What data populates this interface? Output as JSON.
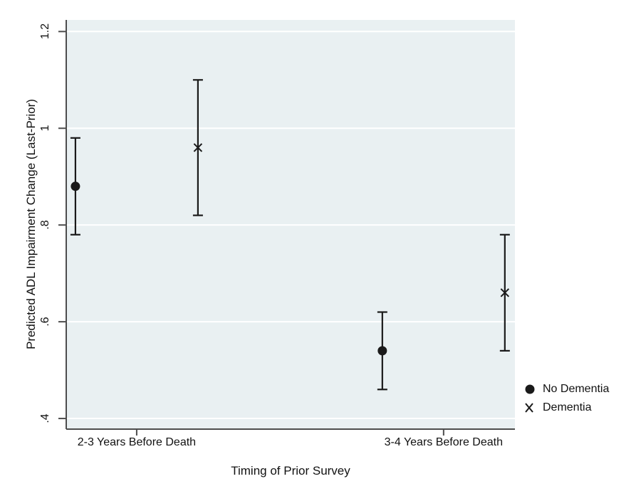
{
  "chart_data": {
    "type": "scatter",
    "title": "",
    "xlabel": "Timing of Prior Survey",
    "ylabel": "Predicted ADL Impairment Change (Last-Prior)",
    "categories": [
      "2-3 Years Before Death",
      "3-4 Years Before Death"
    ],
    "series": [
      {
        "name": "No Dementia",
        "marker": "circle",
        "points": [
          {
            "category": "2-3 Years Before Death",
            "y": 0.88,
            "ci_low": 0.78,
            "ci_high": 0.98
          },
          {
            "category": "3-4 Years Before Death",
            "y": 0.54,
            "ci_low": 0.46,
            "ci_high": 0.62
          }
        ]
      },
      {
        "name": "Dementia",
        "marker": "x",
        "points": [
          {
            "category": "2-3 Years Before Death",
            "y": 0.96,
            "ci_low": 0.82,
            "ci_high": 1.1
          },
          {
            "category": "3-4 Years Before Death",
            "y": 0.66,
            "ci_low": 0.54,
            "ci_high": 0.78
          }
        ]
      }
    ],
    "yticks": [
      {
        "value": 0.4,
        "label": ".4"
      },
      {
        "value": 0.6,
        "label": ".6"
      },
      {
        "value": 0.8,
        "label": ".8"
      },
      {
        "value": 1.0,
        "label": "1"
      },
      {
        "value": 1.2,
        "label": "1.2"
      }
    ],
    "ylim": [
      0.378,
      1.224
    ],
    "grid": true,
    "legend_position": "right",
    "colors": {
      "plot_background": "#e9f0f2",
      "gridline": "#ffffff",
      "axis": "#4d4d4d",
      "marker": "#1a1a1a",
      "text": "#111111"
    }
  }
}
